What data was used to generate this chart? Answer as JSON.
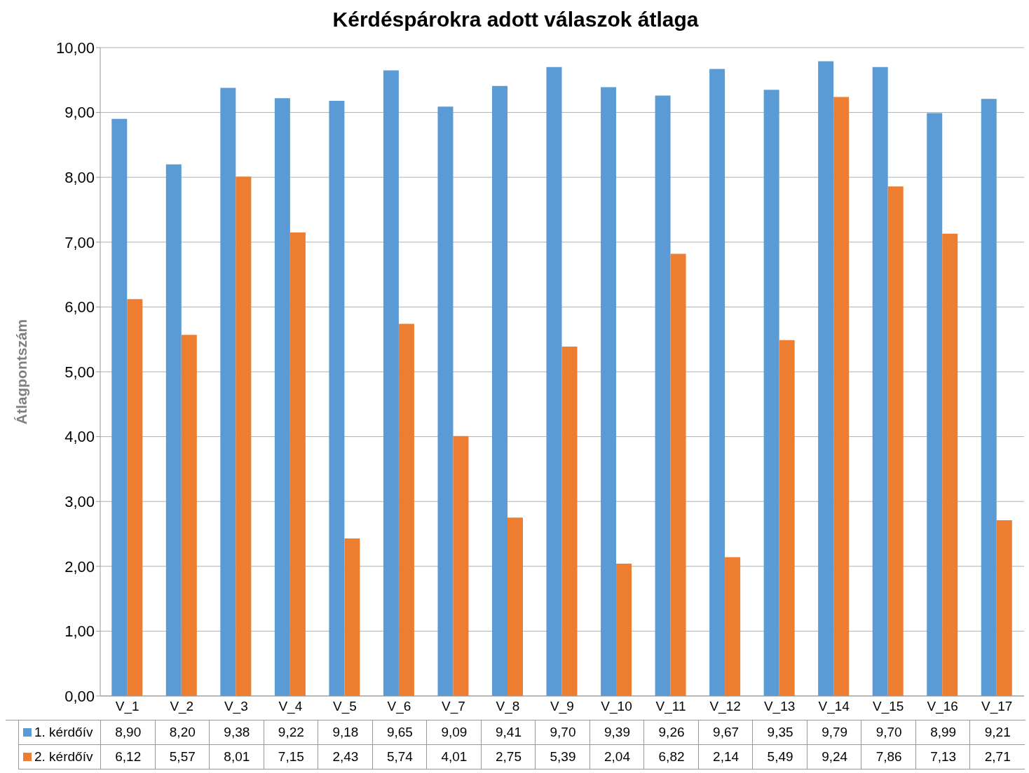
{
  "chart_data": {
    "type": "bar",
    "title": "Kérdéspárokra adott válaszok átlaga",
    "ylabel": "Átlagpontszám",
    "categories": [
      "V_1",
      "V_2",
      "V_3",
      "V_4",
      "V_5",
      "V_6",
      "V_7",
      "V_8",
      "V_9",
      "V_10",
      "V_11",
      "V_12",
      "V_13",
      "V_14",
      "V_15",
      "V_16",
      "V_17"
    ],
    "series": [
      {
        "name": "1. kérdőív",
        "color": "#5b9bd5",
        "values": [
          8.9,
          8.2,
          9.38,
          9.22,
          9.18,
          9.65,
          9.09,
          9.41,
          9.7,
          9.39,
          9.26,
          9.67,
          9.35,
          9.79,
          9.7,
          8.99,
          9.21
        ],
        "value_labels": [
          "8,90",
          "8,20",
          "9,38",
          "9,22",
          "9,18",
          "9,65",
          "9,09",
          "9,41",
          "9,70",
          "9,39",
          "9,26",
          "9,67",
          "9,35",
          "9,79",
          "9,70",
          "8,99",
          "9,21"
        ]
      },
      {
        "name": "2. kérdőív",
        "color": "#ed7d31",
        "values": [
          6.12,
          5.57,
          8.01,
          7.15,
          2.43,
          5.74,
          4.01,
          2.75,
          5.39,
          2.04,
          6.82,
          2.14,
          5.49,
          9.24,
          7.86,
          7.13,
          2.71
        ],
        "value_labels": [
          "6,12",
          "5,57",
          "8,01",
          "7,15",
          "2,43",
          "5,74",
          "4,01",
          "2,75",
          "5,39",
          "2,04",
          "6,82",
          "2,14",
          "5,49",
          "9,24",
          "7,86",
          "7,13",
          "2,71"
        ]
      }
    ],
    "ylim": [
      0,
      10
    ],
    "yticks": [
      {
        "value": 0,
        "label": "0,00"
      },
      {
        "value": 1,
        "label": "1,00"
      },
      {
        "value": 2,
        "label": "2,00"
      },
      {
        "value": 3,
        "label": "3,00"
      },
      {
        "value": 4,
        "label": "4,00"
      },
      {
        "value": 5,
        "label": "5,00"
      },
      {
        "value": 6,
        "label": "6,00"
      },
      {
        "value": 7,
        "label": "7,00"
      },
      {
        "value": 8,
        "label": "8,00"
      },
      {
        "value": 9,
        "label": "9,00"
      },
      {
        "value": 10,
        "label": "10,00"
      }
    ],
    "grid": "y",
    "legend": "bottom"
  }
}
